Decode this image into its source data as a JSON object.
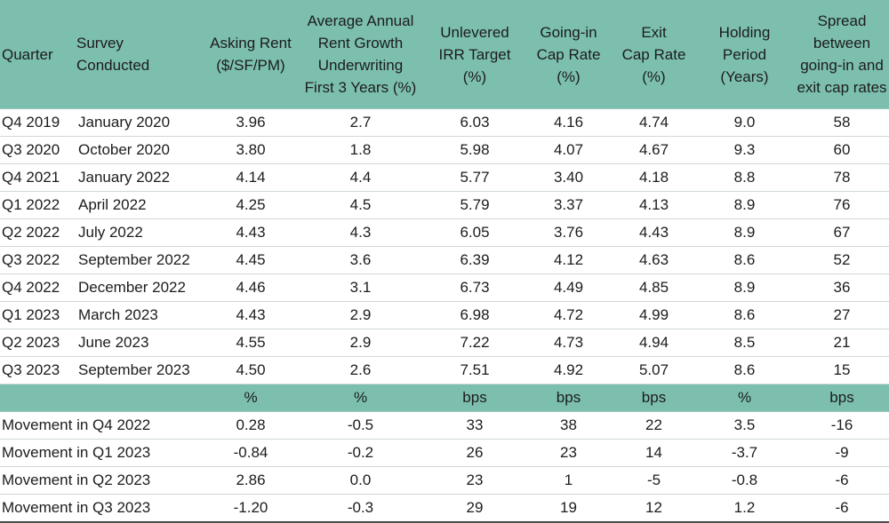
{
  "headers": [
    "Quarter",
    "Survey\nConducted",
    "Asking Rent\n($/SF/PM)",
    "Average Annual\nRent Growth\nUnderwriting\nFirst 3 Years (%)",
    "Unlevered\nIRR Target\n(%)",
    "Going-in\nCap Rate\n(%)",
    "Exit\nCap Rate\n(%)",
    "Holding\nPeriod\n(Years)",
    "Spread\nbetween\ngoing-in and\nexit cap rates"
  ],
  "rows": [
    [
      "Q4 2019",
      "January 2020",
      "3.96",
      "2.7",
      "6.03",
      "4.16",
      "4.74",
      "9.0",
      "58"
    ],
    [
      "Q3 2020",
      "October 2020",
      "3.80",
      "1.8",
      "5.98",
      "4.07",
      "4.67",
      "9.3",
      "60"
    ],
    [
      "Q4 2021",
      "January 2022",
      "4.14",
      "4.4",
      "5.77",
      "3.40",
      "4.18",
      "8.8",
      "78"
    ],
    [
      "Q1 2022",
      "April 2022",
      "4.25",
      "4.5",
      "5.79",
      "3.37",
      "4.13",
      "8.9",
      "76"
    ],
    [
      "Q2 2022",
      "July 2022",
      "4.43",
      "4.3",
      "6.05",
      "3.76",
      "4.43",
      "8.9",
      "67"
    ],
    [
      "Q3 2022",
      "September 2022",
      "4.45",
      "3.6",
      "6.39",
      "4.12",
      "4.63",
      "8.6",
      "52"
    ],
    [
      "Q4 2022",
      "December 2022",
      "4.46",
      "3.1",
      "6.73",
      "4.49",
      "4.85",
      "8.9",
      "36"
    ],
    [
      "Q1 2023",
      "March 2023",
      "4.43",
      "2.9",
      "6.98",
      "4.72",
      "4.99",
      "8.6",
      "27"
    ],
    [
      "Q2 2023",
      "June 2023",
      "4.55",
      "2.9",
      "7.22",
      "4.73",
      "4.94",
      "8.5",
      "21"
    ],
    [
      "Q3 2023",
      "September 2023",
      "4.50",
      "2.6",
      "7.51",
      "4.92",
      "5.07",
      "8.6",
      "15"
    ]
  ],
  "units": [
    "%",
    "%",
    "bps",
    "bps",
    "bps",
    "%",
    "bps"
  ],
  "movements": [
    [
      "Movement in Q4 2022",
      "0.28",
      "-0.5",
      "33",
      "38",
      "22",
      "3.5",
      "-16"
    ],
    [
      "Movement in Q1 2023",
      "-0.84",
      "-0.2",
      "26",
      "23",
      "14",
      "-3.7",
      "-9"
    ],
    [
      "Movement in Q2 2023",
      "2.86",
      "0.0",
      "23",
      "1",
      "-5",
      "-0.8",
      "-6"
    ],
    [
      "Movement in Q3 2023",
      "-1.20",
      "-0.3",
      "29",
      "19",
      "12",
      "1.2",
      "-6"
    ]
  ],
  "colors": {
    "header_bg": "#7cbfae",
    "row_border": "#cfd8d5",
    "bottom_rule": "#4c4c4c"
  }
}
